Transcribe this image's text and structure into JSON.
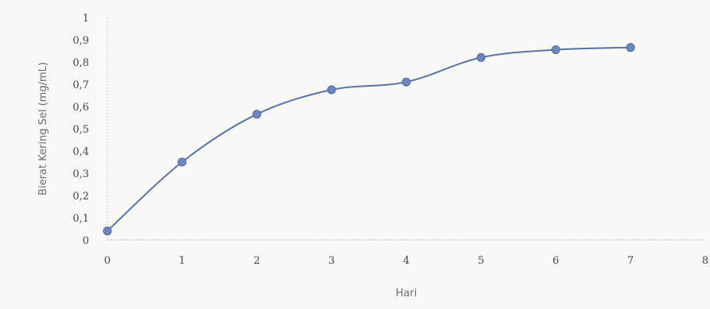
{
  "chart_data": {
    "type": "line",
    "title": "",
    "xlabel": "Hari",
    "ylabel": "Bierat Kering Sel (mg/mL)",
    "x": [
      0,
      1,
      2,
      3,
      4,
      5,
      6,
      7
    ],
    "series": [
      {
        "values": [
          0.04,
          0.35,
          0.565,
          0.675,
          0.71,
          0.82,
          0.855,
          0.865
        ]
      }
    ],
    "xlim": [
      0,
      8
    ],
    "ylim": [
      0,
      1
    ],
    "xticks": [
      "0",
      "1",
      "2",
      "3",
      "4",
      "5",
      "6",
      "7",
      "8"
    ],
    "yticks": [
      "0",
      "0,1",
      "0,2",
      "0,3",
      "0,4",
      "0,5",
      "0,6",
      "0,7",
      "0,8",
      "0,9",
      "1"
    ],
    "grid": false,
    "smooth": true,
    "line_color": "#5a74a8",
    "marker_color": "#6c87bf"
  }
}
